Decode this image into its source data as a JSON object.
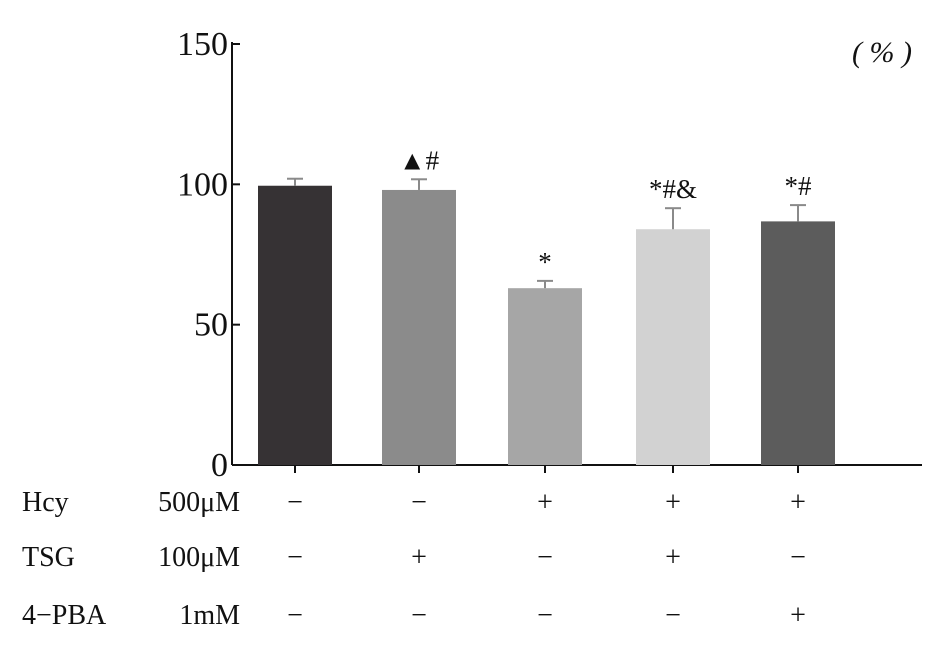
{
  "chart_data": {
    "type": "bar",
    "unit": "( % )",
    "ylim": [
      0,
      150
    ],
    "yticks": [
      0,
      50,
      100,
      150
    ],
    "series": [
      {
        "values": [
          99.5,
          98,
          63,
          84,
          86.8
        ],
        "errors": [
          2.5,
          3.8,
          2.6,
          7.5,
          5.8
        ],
        "colors": [
          "#363234",
          "#8b8b8b",
          "#a6a6a6",
          "#d2d2d2",
          "#5c5c5c"
        ],
        "annotations": [
          "",
          "▲#",
          "*",
          "*#&",
          "*#"
        ]
      }
    ],
    "treatment_rows": [
      {
        "name": "Hcy",
        "dose": "500μM",
        "signs": [
          "−",
          "−",
          "+",
          "+",
          "+"
        ]
      },
      {
        "name": "TSG",
        "dose": "100μM",
        "signs": [
          "−",
          "+",
          "−",
          "+",
          "−"
        ]
      },
      {
        "name": "4−PBA",
        "dose": "1mM",
        "signs": [
          "−",
          "−",
          "−",
          "−",
          "+"
        ]
      }
    ]
  }
}
